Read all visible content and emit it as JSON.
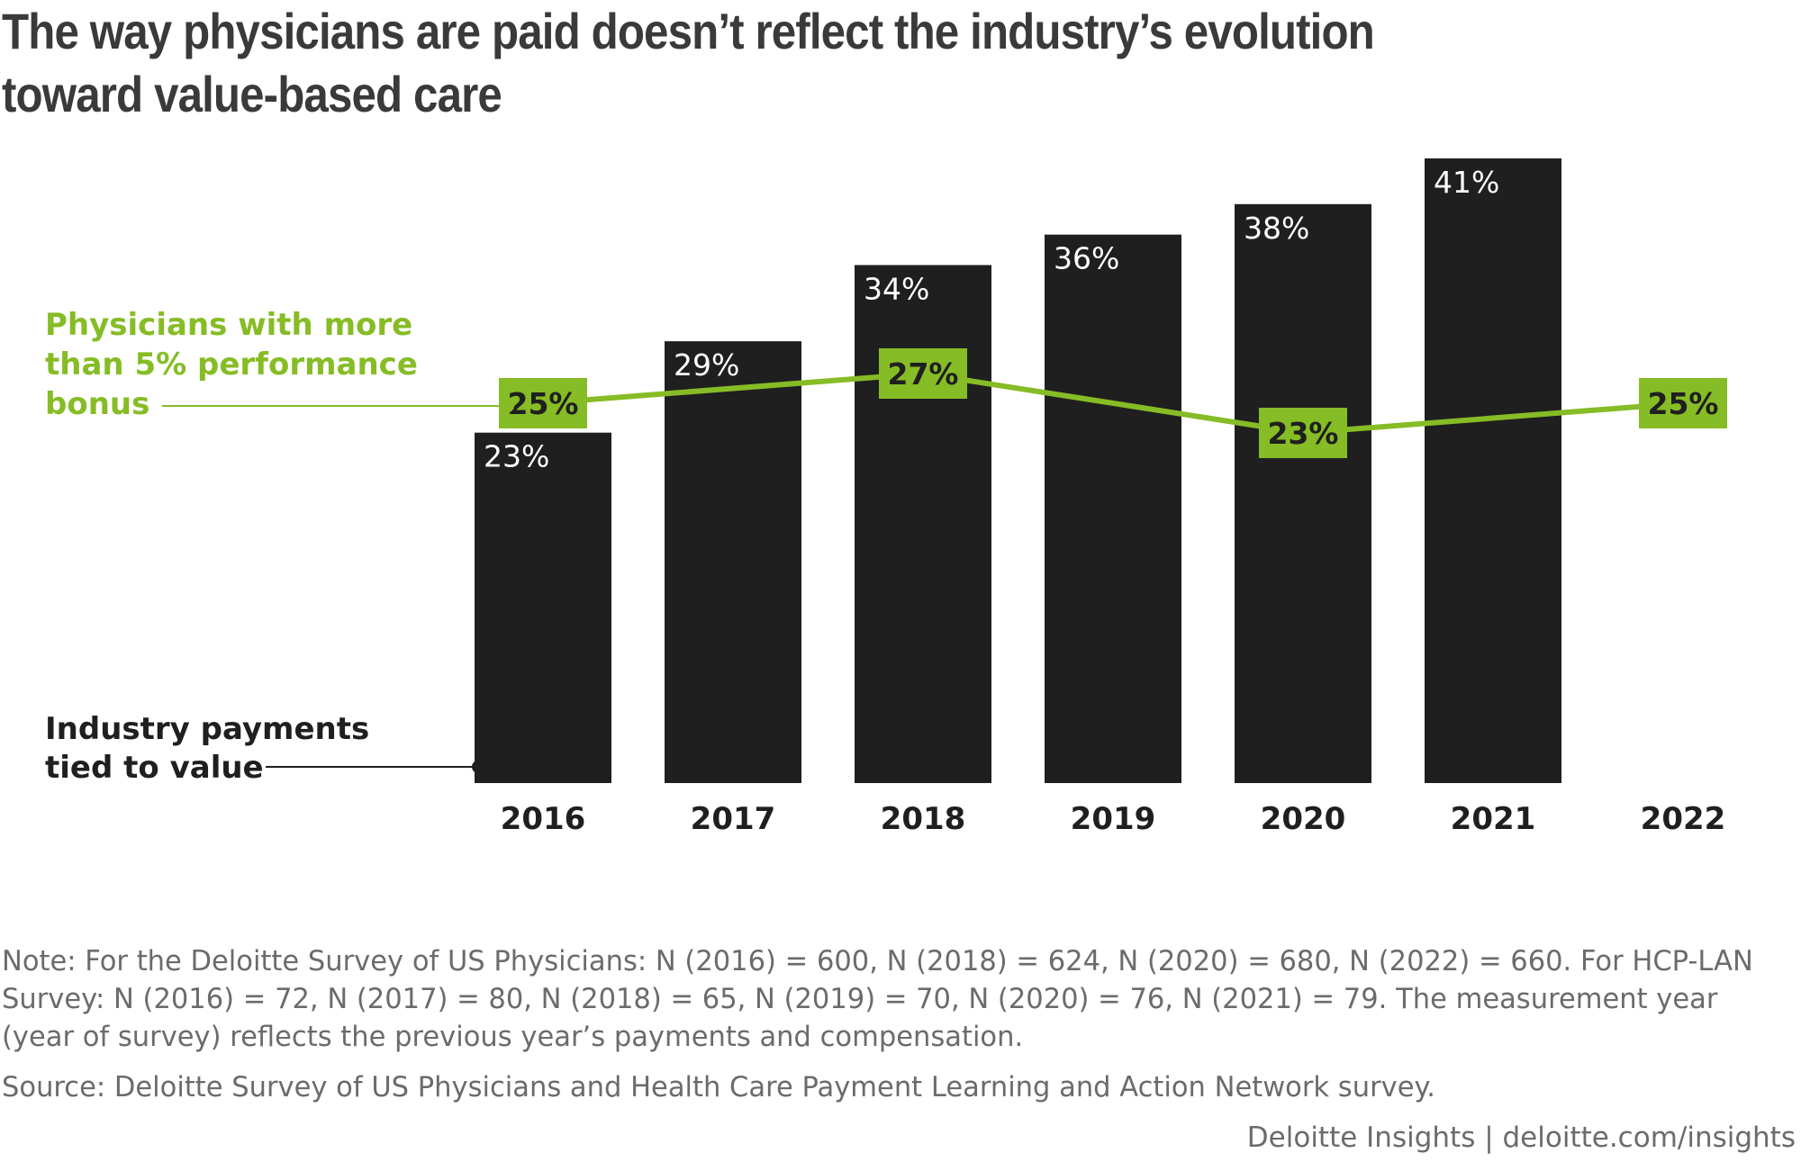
{
  "title": "The way physicians are paid doesn’t reflect the industry’s evolution toward value-based care",
  "chart_data": {
    "type": "bar",
    "categories": [
      "2016",
      "2017",
      "2018",
      "2019",
      "2020",
      "2021",
      "2022"
    ],
    "series": [
      {
        "name": "Industry payments tied to value",
        "name_lines": [
          "Industry payments",
          "tied to value"
        ],
        "kind": "bar",
        "color": "#1f1f1f",
        "values": [
          23,
          29,
          34,
          36,
          38,
          41,
          null
        ],
        "labels": [
          "23%",
          "29%",
          "34%",
          "36%",
          "38%",
          "41%",
          null
        ]
      },
      {
        "name": "Physicians with more than 5% performance bonus",
        "name_lines": [
          "Physicians with more",
          "than 5% performance",
          "bonus"
        ],
        "kind": "line",
        "color": "#86bc25",
        "points": [
          {
            "category": "2016",
            "value": 25,
            "label": "25%"
          },
          {
            "category": "2018",
            "value": 27,
            "label": "27%"
          },
          {
            "category": "2020",
            "value": 23,
            "label": "23%"
          },
          {
            "category": "2022",
            "value": 25,
            "label": "25%"
          }
        ]
      }
    ],
    "xlabel": "",
    "ylabel": "",
    "ylim": [
      0,
      41
    ],
    "grid": false,
    "legend": "left"
  },
  "note": "Note: For the Deloitte Survey of US Physicians: N (2016) = 600, N (2018) = 624, N (2020) = 680, N (2022) = 660. For HCP-LAN Survey: N (2016) = 72, N (2017) = 80, N (2018) = 65, N (2019) = 70, N (2020) = 76, N (2021) = 79. The measurement year (year of survey) reflects the previous year’s payments and compensation.",
  "source": "Source: Deloitte Survey of US Physicians and Health Care Payment Learning and Action Network survey.",
  "footer": {
    "credit": "Deloitte Insights | deloitte.com/insights"
  }
}
